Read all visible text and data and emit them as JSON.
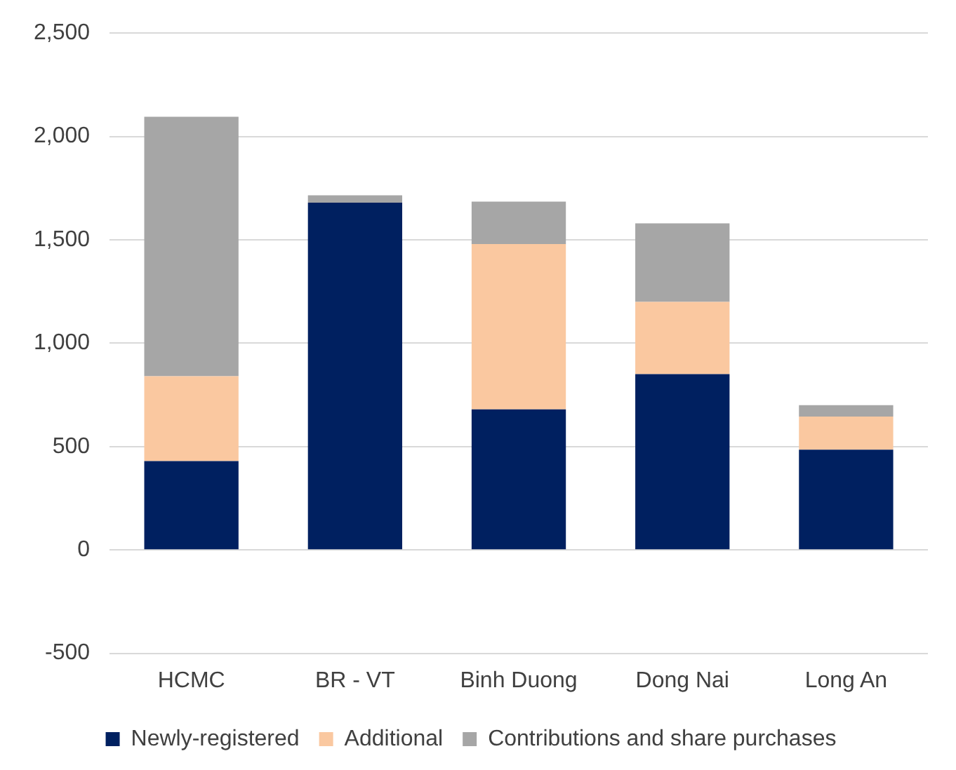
{
  "chart_data": {
    "type": "bar",
    "stacked": true,
    "categories": [
      "HCMC",
      "BR - VT",
      "Binh Duong",
      "Dong Nai",
      "Long An"
    ],
    "series": [
      {
        "name": "Newly-registered",
        "color": "#002060",
        "values": [
          430,
          1680,
          680,
          850,
          485
        ]
      },
      {
        "name": "Additional",
        "color": "#fac8a0",
        "values": [
          410,
          0,
          800,
          350,
          160
        ]
      },
      {
        "name": "Contributions and share purchases",
        "color": "#a6a6a6",
        "values": [
          1255,
          35,
          205,
          380,
          55
        ]
      }
    ],
    "ylim": [
      -500,
      2500
    ],
    "yticks": [
      {
        "value": -500,
        "label": "-500"
      },
      {
        "value": 0,
        "label": "0"
      },
      {
        "value": 500,
        "label": "500"
      },
      {
        "value": 1000,
        "label": "1,000"
      },
      {
        "value": 1500,
        "label": "1,500"
      },
      {
        "value": 2000,
        "label": "2,000"
      },
      {
        "value": 2500,
        "label": "2,500"
      }
    ],
    "grid": "y",
    "legend": "bottom"
  }
}
